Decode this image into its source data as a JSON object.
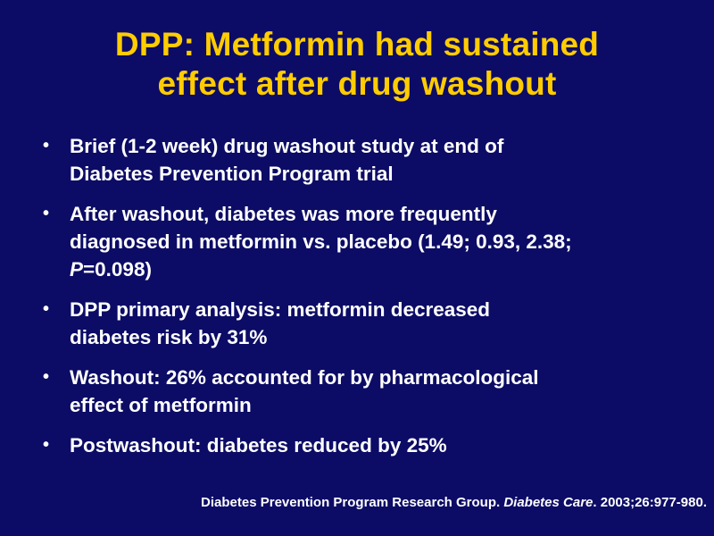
{
  "title": {
    "line1": "DPP: Metformin had sustained",
    "line2": "effect after drug washout"
  },
  "bullets": [
    {
      "line1": "Brief (1-2 week) drug washout study at end of",
      "line2": "Diabetes Prevention Program trial"
    },
    {
      "line1": "After washout, diabetes was more frequently",
      "line2": "diagnosed in metformin vs. placebo (1.49; 0.93, 2.38;",
      "line3_italic": "P",
      "line3_rest": "=0.098)"
    },
    {
      "line1": "DPP primary analysis: metformin decreased",
      "line2": "diabetes risk by 31%"
    },
    {
      "line1": "Washout: 26% accounted for by pharmacological",
      "line2": "effect of metformin"
    },
    {
      "line1": "Postwashout: diabetes reduced by 25%"
    }
  ],
  "bullet_symbol": "•",
  "citation": {
    "authors": "Diabetes Prevention Program Research Group. ",
    "journal": "Diabetes Care",
    "details": ". 2003;26:977-980."
  },
  "colors": {
    "background": "#0c0c66",
    "title": "#ffcc00",
    "text": "#ffffff"
  }
}
